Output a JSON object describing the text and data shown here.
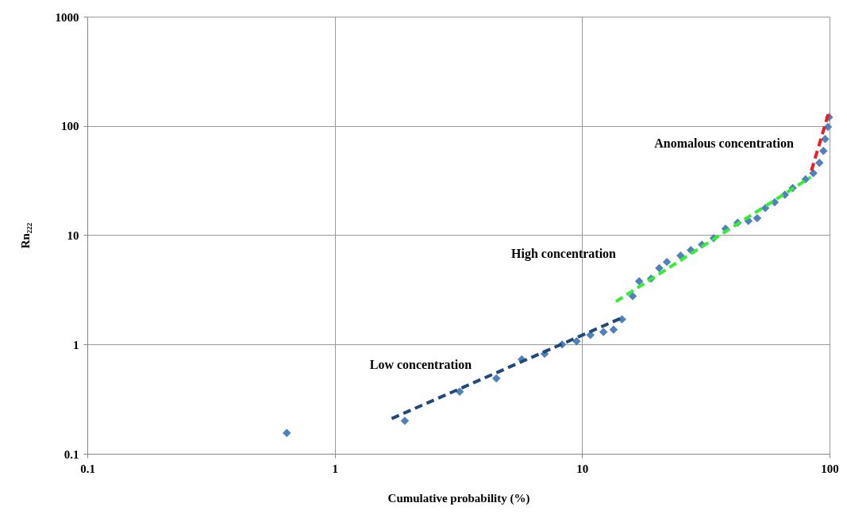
{
  "chart_data": {
    "type": "scatter",
    "xlabel": "Cumulative probability (%)",
    "ylabel": "Rn₂₂₂",
    "log": "xy",
    "xlim": [
      0.1,
      100
    ],
    "ylim": [
      0.1,
      1000
    ],
    "xticks": [
      0.1,
      1,
      10,
      100
    ],
    "yticks": [
      0.1,
      1,
      10,
      100,
      1000
    ],
    "grid": true,
    "marker": "diamond",
    "series": [
      {
        "color": "#4f81bd",
        "x": [
          0.64,
          1.92,
          3.2,
          4.5,
          5.7,
          7.05,
          8.3,
          9.5,
          10.8,
          12.2,
          13.4,
          14.5,
          16,
          17,
          19,
          20.5,
          22,
          25,
          27.5,
          30.5,
          34,
          38,
          42.5,
          47,
          51,
          55,
          60,
          66,
          71,
          80,
          86,
          91,
          94.5,
          96,
          98.5,
          99.5
        ],
        "values": [
          0.155,
          0.2,
          0.37,
          0.49,
          0.73,
          0.82,
          1.0,
          1.07,
          1.22,
          1.3,
          1.37,
          1.7,
          2.77,
          3.8,
          4,
          5,
          5.7,
          6.5,
          7.3,
          8.2,
          9.4,
          11.5,
          13,
          13.5,
          14.3,
          17.7,
          20,
          23.5,
          27,
          32.5,
          37,
          46,
          59,
          76,
          98,
          120
        ]
      },
      {
        "type": "line",
        "marker": "none",
        "line_style": "dashed",
        "color": "#1f497d",
        "x": [
          1.7,
          14.6
        ],
        "values": [
          0.21,
          1.77
        ]
      },
      {
        "type": "line",
        "marker": "none",
        "line_style": "dashed",
        "color": "#33ee33",
        "x": [
          13.7,
          84
        ],
        "values": [
          2.47,
          34
        ]
      },
      {
        "type": "line",
        "marker": "none",
        "line_style": "dashed",
        "color": "#ee1c25",
        "x": [
          84.5,
          100
        ],
        "values": [
          39,
          140
        ]
      }
    ],
    "annotations": [
      "Low concentration",
      "High concentration",
      "Anomalous concentration"
    ]
  }
}
